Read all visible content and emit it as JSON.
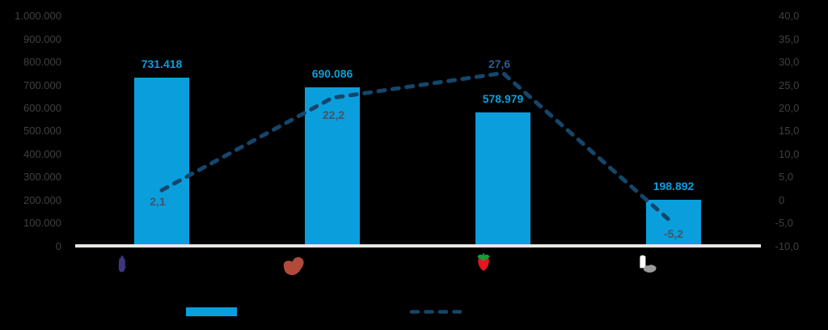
{
  "chart_data": {
    "type": "combo",
    "background": "#000000",
    "grid": false,
    "categories": [
      {
        "icon": "eggplant-icon"
      },
      {
        "icon": "meat-icon"
      },
      {
        "icon": "strawberry-icon"
      },
      {
        "icon": "milk-icon"
      }
    ],
    "series": [
      {
        "name": "bars",
        "type": "bar",
        "axis": "left",
        "color": "#0A9FDC",
        "values": [
          731418,
          690086,
          578979,
          198892
        ],
        "labels": [
          "731.418",
          "690.086",
          "578.979",
          "198.892"
        ],
        "label_color": "#0A9FDC"
      },
      {
        "name": "dashed-line",
        "type": "line",
        "axis": "right",
        "color": "#15466B",
        "dashed": true,
        "values": [
          2.1,
          22.2,
          27.6,
          -5.2
        ],
        "labels": [
          "2,1",
          "22,2",
          "27,6",
          "-5,2"
        ],
        "label_colors": [
          "#44546A",
          "#44546A",
          "#2E5C8E",
          "#44546A"
        ]
      }
    ],
    "left_axis": {
      "min": 0,
      "max": 1000000,
      "tick_step": 100000,
      "tick_labels": [
        "0",
        "100.000",
        "200.000",
        "300.000",
        "400.000",
        "500.000",
        "600.000",
        "700.000",
        "800.000",
        "900.000",
        "1.000.000"
      ],
      "text_color": "#404040"
    },
    "right_axis": {
      "min": -10,
      "max": 40,
      "tick_step": 5,
      "tick_labels": [
        "-10,0",
        "-5,0",
        "0",
        "5,0",
        "10,0",
        "15,0",
        "20,0",
        "25,0",
        "30,0",
        "35,0",
        "40,0"
      ],
      "text_color": "#404040"
    },
    "baseline_color": "#E9E8E5",
    "legend": [
      {
        "name": "bar-series-swatch",
        "kind": "rect",
        "color": "#0A9FDC"
      },
      {
        "name": "line-series-swatch",
        "kind": "dashed-line",
        "color": "#15466B"
      }
    ],
    "icon_colors": {
      "eggplant": "#3D3780",
      "meat": "#B04B3C",
      "strawberry_body": "#E8141E",
      "strawberry_leaf": "#179C38",
      "milk_bottle": "#FFFFFF",
      "milk_splash": "#9B9B9B"
    }
  }
}
